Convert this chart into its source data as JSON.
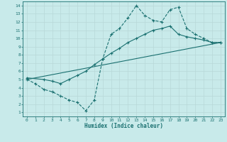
{
  "xlabel": "Humidex (Indice chaleur)",
  "bg_color": "#c8eaea",
  "grid_color": "#d0e8e8",
  "line_color": "#1a7070",
  "xlim": [
    -0.5,
    23.5
  ],
  "ylim": [
    0.5,
    14.5
  ],
  "xticks": [
    0,
    1,
    2,
    3,
    4,
    5,
    6,
    7,
    8,
    9,
    10,
    11,
    12,
    13,
    14,
    15,
    16,
    17,
    18,
    19,
    20,
    21,
    22,
    23
  ],
  "yticks": [
    1,
    2,
    3,
    4,
    5,
    6,
    7,
    8,
    9,
    10,
    11,
    12,
    13,
    14
  ],
  "line1_dashed": {
    "x": [
      0,
      1,
      2,
      3,
      4,
      5,
      6,
      7,
      8,
      9,
      10,
      11,
      12,
      13,
      14,
      15,
      16,
      17,
      18,
      19,
      20,
      21,
      22,
      23
    ],
    "y": [
      5,
      4.5,
      3.8,
      3.5,
      3.0,
      2.5,
      2.2,
      1.2,
      2.5,
      7.5,
      10.5,
      11.2,
      12.5,
      14.0,
      12.8,
      12.2,
      12.0,
      13.5,
      13.8,
      11.2,
      10.5,
      10.0,
      9.5,
      9.5
    ]
  },
  "line2_solid": {
    "x": [
      0,
      2,
      3,
      4,
      5,
      6,
      7,
      8,
      9,
      10,
      11,
      12,
      13,
      14,
      15,
      16,
      17,
      18,
      19,
      20,
      21,
      22,
      23
    ],
    "y": [
      5.2,
      5.0,
      4.8,
      4.5,
      5.0,
      5.5,
      6.0,
      6.8,
      7.5,
      8.2,
      8.8,
      9.5,
      10.0,
      10.5,
      11.0,
      11.2,
      11.5,
      10.5,
      10.2,
      10.0,
      9.8,
      9.5,
      9.5
    ]
  },
  "line3_straight": {
    "x": [
      0,
      23
    ],
    "y": [
      5.0,
      9.5
    ]
  }
}
